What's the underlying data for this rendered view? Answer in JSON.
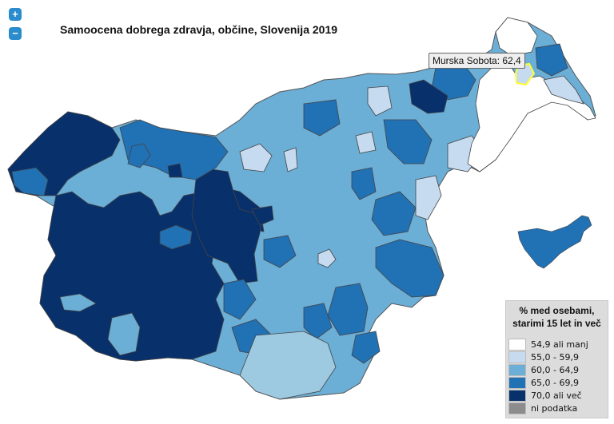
{
  "map": {
    "title": "Samoocena dobrega zdravja, občine, Slovenija 2019",
    "zoom_in_label": "+",
    "zoom_out_label": "−",
    "tooltip": "Murska Sobota: 62,4"
  },
  "legend": {
    "title_line1": "% med osebami,",
    "title_line2": "starimi 15 let in več",
    "items": [
      {
        "label": "54,9 ali manj",
        "color": "#ffffff"
      },
      {
        "label": "55,0 - 59,9",
        "color": "#c6dbef"
      },
      {
        "label": "60,0 - 64,9",
        "color": "#6baed6"
      },
      {
        "label": "65,0 - 69,9",
        "color": "#2171b5"
      },
      {
        "label": "70,0 ali več",
        "color": "#08306b"
      },
      {
        "label": "ni podatka",
        "color": "#8c8c8c"
      }
    ]
  },
  "colors": {
    "c1": "#ffffff",
    "c2": "#c6dbef",
    "c3": "#6baed6",
    "c4": "#2171b5",
    "c5": "#08306b",
    "highlight": "#ffff33"
  }
}
